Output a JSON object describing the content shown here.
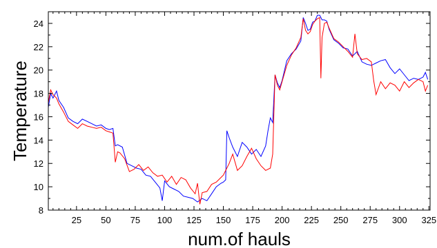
{
  "chart_data": {
    "type": "line",
    "title": "",
    "xlabel": "num.of hauls",
    "ylabel": "Temperature",
    "xlim": [
      1,
      326
    ],
    "ylim": [
      8,
      25
    ],
    "xticks": [
      25,
      50,
      75,
      100,
      125,
      150,
      175,
      200,
      225,
      250,
      275,
      300,
      325
    ],
    "yticks": [
      8,
      10,
      12,
      14,
      16,
      18,
      20,
      22,
      24
    ],
    "grid": false,
    "legend": "none",
    "series": [
      {
        "color": "#0000ff",
        "x": [
          1,
          3,
          5,
          8,
          10,
          14,
          18,
          22,
          26,
          30,
          34,
          38,
          42,
          46,
          50,
          53,
          56,
          58,
          60,
          64,
          68,
          72,
          76,
          80,
          84,
          88,
          92,
          96,
          98,
          100,
          104,
          108,
          112,
          116,
          120,
          124,
          128,
          132,
          136,
          140,
          144,
          148,
          150,
          152,
          153,
          155,
          158,
          162,
          166,
          170,
          174,
          178,
          182,
          186,
          188,
          190,
          192,
          194,
          196,
          198,
          200,
          204,
          208,
          212,
          216,
          218,
          220,
          222,
          224,
          226,
          228,
          230,
          232,
          234,
          236,
          238,
          240,
          244,
          248,
          252,
          256,
          260,
          264,
          268,
          272,
          276,
          280,
          284,
          288,
          292,
          296,
          300,
          304,
          308,
          312,
          316,
          320,
          322,
          324
        ],
        "y": [
          16.8,
          18.0,
          17.6,
          18.2,
          17.4,
          16.8,
          15.9,
          15.6,
          15.4,
          15.8,
          15.6,
          15.4,
          15.2,
          15.3,
          15.0,
          14.9,
          15.0,
          13.5,
          13.6,
          13.4,
          12.0,
          11.8,
          11.6,
          11.5,
          11.0,
          10.9,
          10.4,
          9.9,
          8.8,
          10.5,
          10.0,
          9.8,
          9.6,
          9.2,
          9.1,
          9.0,
          8.7,
          9.0,
          8.8,
          9.4,
          10.0,
          10.3,
          10.4,
          10.6,
          14.8,
          14.2,
          13.4,
          12.6,
          13.8,
          13.4,
          12.8,
          13.2,
          12.6,
          13.5,
          14.8,
          15.9,
          15.5,
          19.6,
          18.9,
          18.5,
          19.1,
          20.8,
          21.4,
          21.8,
          22.5,
          24.5,
          24.0,
          23.4,
          23.5,
          24.1,
          24.2,
          24.7,
          24.7,
          24.3,
          24.3,
          24.2,
          23.5,
          22.6,
          22.3,
          21.9,
          21.8,
          21.2,
          21.6,
          20.7,
          20.5,
          20.4,
          20.6,
          20.8,
          20.9,
          20.2,
          19.7,
          20.1,
          19.6,
          19.1,
          19.3,
          19.2,
          19.4,
          19.8,
          19.2
        ]
      },
      {
        "color": "#ff0000",
        "x": [
          1,
          3,
          5,
          8,
          10,
          14,
          18,
          22,
          26,
          30,
          34,
          38,
          42,
          46,
          50,
          53,
          56,
          58,
          60,
          62,
          66,
          70,
          74,
          78,
          82,
          86,
          90,
          94,
          98,
          102,
          106,
          110,
          114,
          118,
          122,
          126,
          128,
          130,
          132,
          136,
          140,
          144,
          148,
          150,
          152,
          155,
          158,
          162,
          166,
          170,
          174,
          178,
          182,
          186,
          190,
          192,
          194,
          196,
          198,
          200,
          204,
          208,
          212,
          216,
          218,
          220,
          222,
          224,
          226,
          228,
          230,
          232,
          233,
          234,
          236,
          238,
          240,
          244,
          248,
          252,
          256,
          260,
          262,
          264,
          268,
          272,
          276,
          278,
          280,
          284,
          288,
          292,
          296,
          300,
          304,
          308,
          312,
          316,
          320,
          322,
          324
        ],
        "y": [
          17.2,
          18.3,
          17.9,
          17.6,
          17.1,
          16.4,
          15.6,
          15.3,
          15.0,
          15.4,
          15.2,
          15.1,
          15.0,
          15.1,
          14.8,
          14.7,
          14.6,
          12.1,
          13.0,
          12.9,
          12.4,
          11.3,
          11.5,
          11.9,
          11.4,
          11.7,
          11.2,
          10.9,
          11.0,
          10.4,
          10.9,
          10.2,
          10.8,
          10.6,
          9.9,
          9.4,
          10.3,
          8.5,
          9.5,
          9.6,
          10.2,
          10.4,
          10.8,
          11.0,
          11.4,
          12.0,
          12.8,
          11.4,
          11.8,
          12.6,
          13.3,
          12.4,
          11.8,
          11.4,
          11.6,
          12.8,
          19.6,
          18.7,
          18.3,
          19.0,
          20.4,
          21.3,
          21.9,
          22.8,
          24.4,
          23.4,
          23.1,
          23.3,
          23.9,
          24.2,
          24.4,
          24.5,
          19.3,
          22.8,
          24.0,
          24.1,
          23.6,
          22.7,
          22.4,
          22.0,
          21.6,
          21.1,
          23.1,
          21.4,
          20.9,
          21.0,
          20.7,
          19.1,
          17.9,
          19.0,
          18.4,
          18.9,
          18.7,
          18.2,
          19.0,
          18.5,
          18.9,
          19.2,
          19.0,
          18.2,
          18.7
        ]
      }
    ]
  }
}
